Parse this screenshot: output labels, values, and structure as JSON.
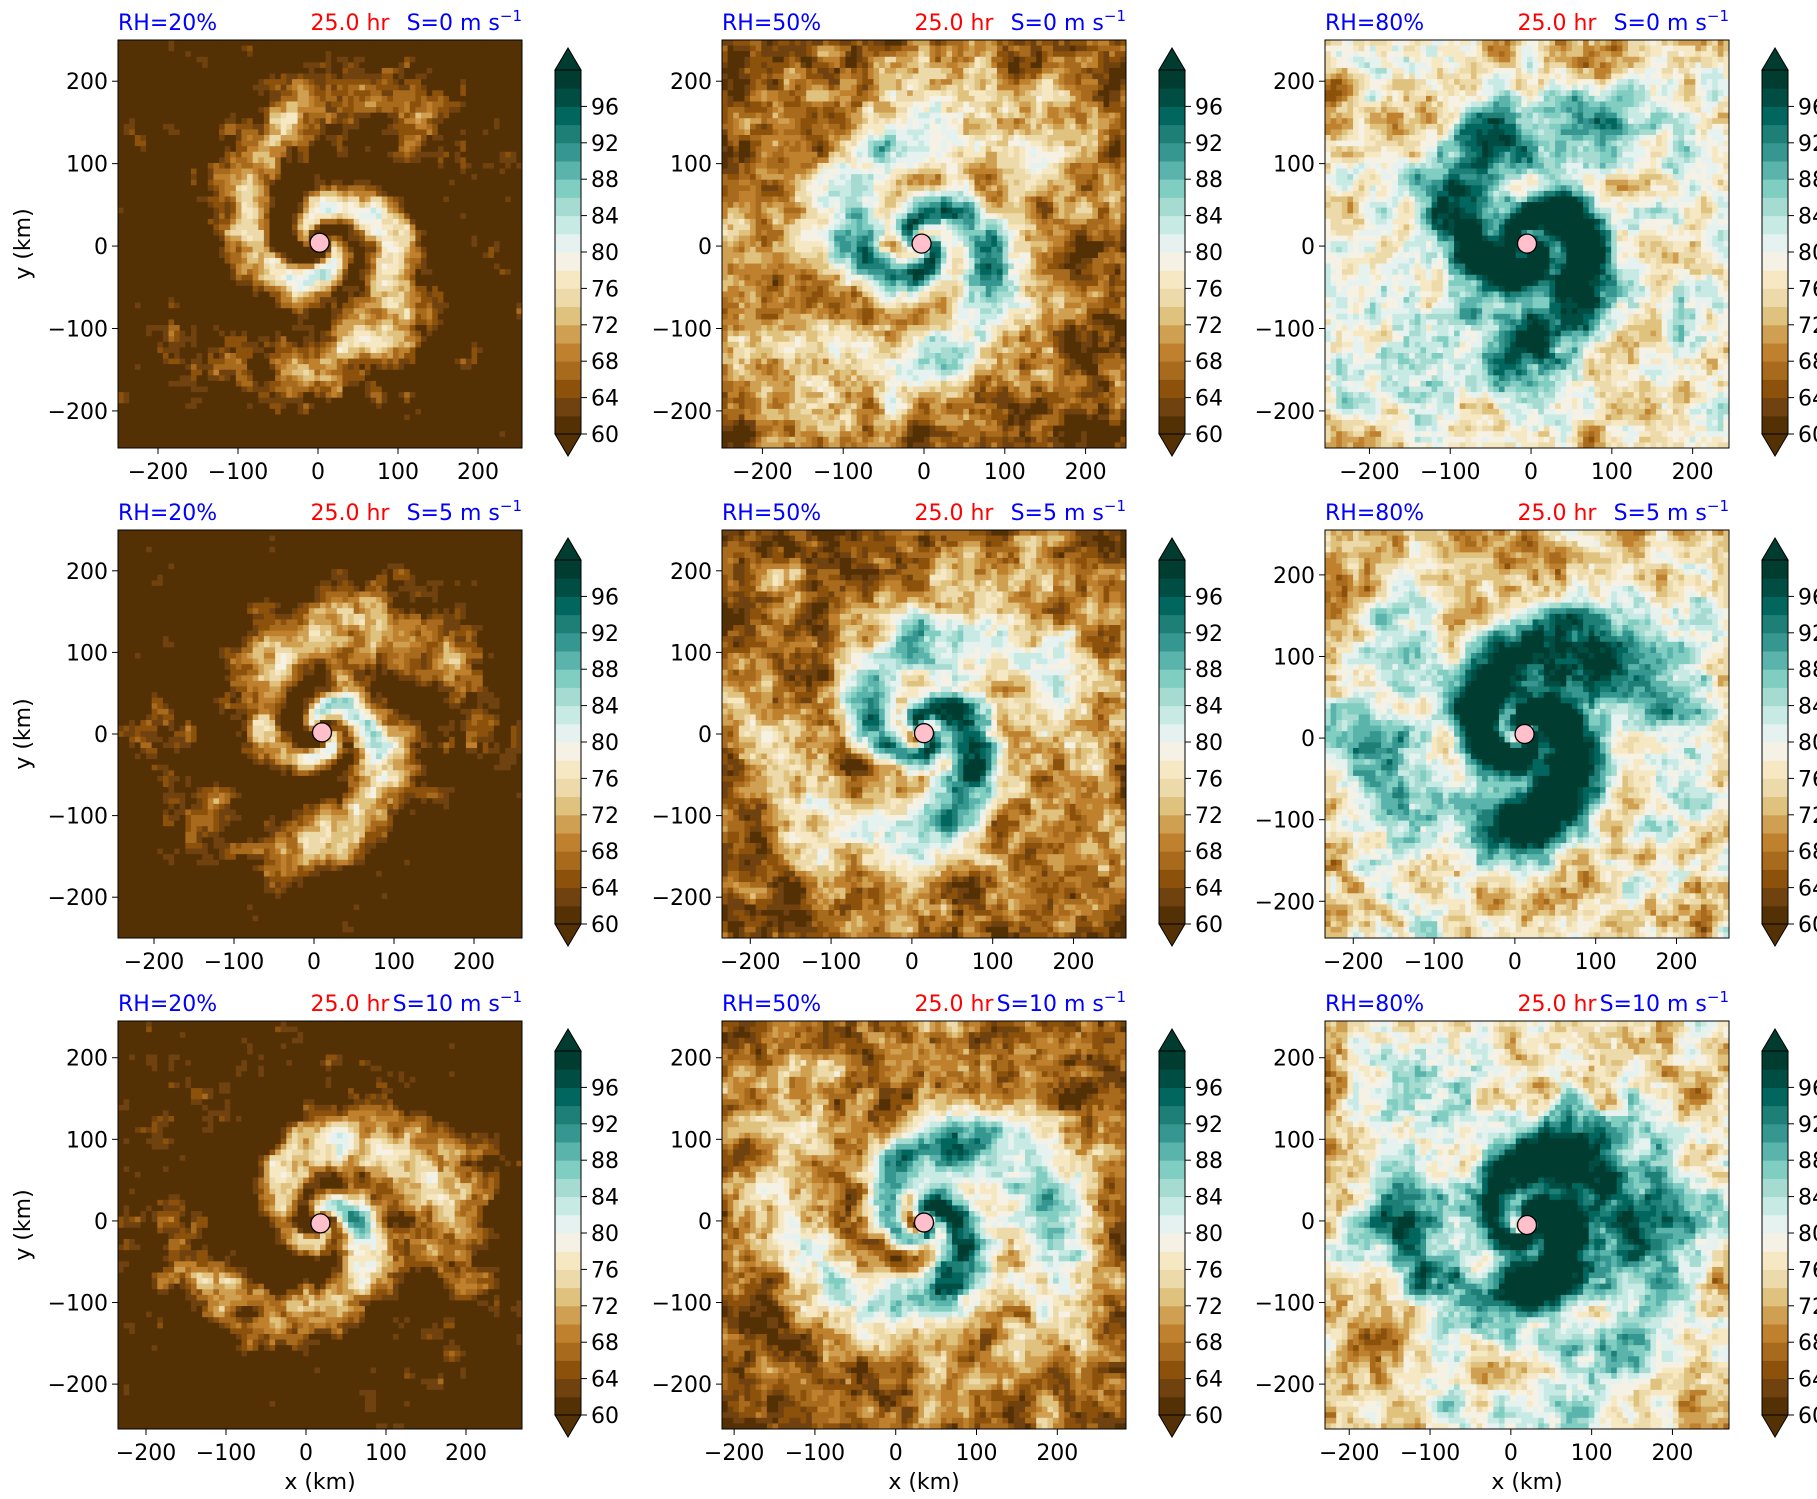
{
  "figure": {
    "colorbar_ticks": [
      "60",
      "64",
      "68",
      "72",
      "76",
      "80",
      "84",
      "88",
      "92",
      "96"
    ],
    "colorbar_levels": [
      60,
      62,
      64,
      66,
      68,
      70,
      72,
      74,
      76,
      78,
      80,
      82,
      84,
      86,
      88,
      90,
      92,
      94,
      96,
      98
    ],
    "colorbar_colors": [
      "#543005",
      "#6f4210",
      "#8c510a",
      "#a86a1c",
      "#bf812d",
      "#d0a052",
      "#dfc27d",
      "#eddaab",
      "#f6e8c3",
      "#f5f2e5",
      "#e6f2f0",
      "#c7eae5",
      "#a6dbd1",
      "#80cdc1",
      "#5ab4ac",
      "#35978f",
      "#1d7f76",
      "#01665e",
      "#004d43",
      "#003c30"
    ],
    "xlabel": "x (km)",
    "ylabel": "y (km)",
    "time_label": "25.0 hr",
    "title_color_left": "#0000ff",
    "title_color_center": "#ff0000",
    "title_color_right": "#0000ff",
    "marker_color": "#ffc0cb"
  },
  "chart_data": [
    {
      "type": "heatmap",
      "rh_label": "RH=20%",
      "time_label": "25.0 hr",
      "shear_label": "S=0 m s",
      "shear_exp": "−1",
      "xlim": [
        -250,
        255
      ],
      "ylim": [
        -245,
        250
      ],
      "xticks": [
        -200,
        -100,
        0,
        100,
        200
      ],
      "yticks": [
        -200,
        -100,
        0,
        100,
        200
      ],
      "xticklabels": [
        "−200",
        "−100",
        "0",
        "100",
        "200"
      ],
      "yticklabels": [
        "−200",
        "−100",
        "0",
        "100",
        "200"
      ],
      "center": [
        2,
        4
      ],
      "rh_env": 20,
      "shear": 0
    },
    {
      "type": "heatmap",
      "rh_label": "RH=50%",
      "time_label": "25.0 hr",
      "shear_label": "S=0 m s",
      "shear_exp": "−1",
      "xlim": [
        -250,
        250
      ],
      "ylim": [
        -245,
        250
      ],
      "xticks": [
        -200,
        -100,
        0,
        100,
        200
      ],
      "yticks": [
        -200,
        -100,
        0,
        100,
        200
      ],
      "xticklabels": [
        "−200",
        "−100",
        "0",
        "100",
        "200"
      ],
      "yticklabels": [
        "−200",
        "−100",
        "0",
        "100",
        "200"
      ],
      "center": [
        -3,
        3
      ],
      "rh_env": 50,
      "shear": 0
    },
    {
      "type": "heatmap",
      "rh_label": "RH=80%",
      "time_label": "25.0 hr",
      "shear_label": "S=0 m s",
      "shear_exp": "−1",
      "xlim": [
        -255,
        245
      ],
      "ylim": [
        -245,
        250
      ],
      "xticks": [
        -200,
        -100,
        0,
        100,
        200
      ],
      "yticks": [
        -200,
        -100,
        0,
        100,
        200
      ],
      "xticklabels": [
        "−200",
        "−100",
        "0",
        "100",
        "200"
      ],
      "yticklabels": [
        "−200",
        "−100",
        "0",
        "100",
        "200"
      ],
      "center": [
        -5,
        3
      ],
      "rh_env": 80,
      "shear": 0
    },
    {
      "type": "heatmap",
      "rh_label": "RH=20%",
      "time_label": "25.0 hr",
      "shear_label": "S=5 m s",
      "shear_exp": "−1",
      "xlim": [
        -245,
        260
      ],
      "ylim": [
        -250,
        250
      ],
      "xticks": [
        -200,
        -100,
        0,
        100,
        200
      ],
      "yticks": [
        -200,
        -100,
        0,
        100,
        200
      ],
      "xticklabels": [
        "−200",
        "−100",
        "0",
        "100",
        "200"
      ],
      "yticklabels": [
        "−200",
        "−100",
        "0",
        "100",
        "200"
      ],
      "center": [
        10,
        2
      ],
      "rh_env": 20,
      "shear": 5
    },
    {
      "type": "heatmap",
      "rh_label": "RH=50%",
      "time_label": "25.0 hr",
      "shear_label": "S=5 m s",
      "shear_exp": "−1",
      "xlim": [
        -235,
        265
      ],
      "ylim": [
        -250,
        250
      ],
      "xticks": [
        -200,
        -100,
        0,
        100,
        200
      ],
      "yticks": [
        -200,
        -100,
        0,
        100,
        200
      ],
      "xticklabels": [
        "−200",
        "−100",
        "0",
        "100",
        "200"
      ],
      "yticklabels": [
        "−200",
        "−100",
        "0",
        "100",
        "200"
      ],
      "center": [
        15,
        1
      ],
      "rh_env": 50,
      "shear": 5
    },
    {
      "type": "heatmap",
      "rh_label": "RH=80%",
      "time_label": "25.0 hr",
      "shear_label": "S=5 m s",
      "shear_exp": "−1",
      "xlim": [
        -235,
        265
      ],
      "ylim": [
        -245,
        255
      ],
      "xticks": [
        -200,
        -100,
        0,
        100,
        200
      ],
      "yticks": [
        -200,
        -100,
        0,
        100,
        200
      ],
      "xticklabels": [
        "−200",
        "−100",
        "0",
        "100",
        "200"
      ],
      "yticklabels": [
        "−200",
        "−100",
        "0",
        "100",
        "200"
      ],
      "center": [
        12,
        5
      ],
      "rh_env": 80,
      "shear": 5
    },
    {
      "type": "heatmap",
      "rh_label": "RH=20%",
      "time_label": "25.0 hr",
      "shear_label": "S=10 m s",
      "shear_exp": "−1",
      "xlim": [
        -235,
        270
      ],
      "ylim": [
        -255,
        245
      ],
      "xticks": [
        -200,
        -100,
        0,
        100,
        200
      ],
      "yticks": [
        -200,
        -100,
        0,
        100,
        200
      ],
      "xticklabels": [
        "−200",
        "−100",
        "0",
        "100",
        "200"
      ],
      "yticklabels": [
        "−200",
        "−100",
        "0",
        "100",
        "200"
      ],
      "center": [
        18,
        -3
      ],
      "rh_env": 20,
      "shear": 10
    },
    {
      "type": "heatmap",
      "rh_label": "RH=50%",
      "time_label": "25.0 hr",
      "shear_label": "S=10 m s",
      "shear_exp": "−1",
      "xlim": [
        -215,
        285
      ],
      "ylim": [
        -255,
        245
      ],
      "xticks": [
        -200,
        -100,
        0,
        100,
        200
      ],
      "yticks": [
        -200,
        -100,
        0,
        100,
        200
      ],
      "xticklabels": [
        "−200",
        "−100",
        "0",
        "100",
        "200"
      ],
      "yticklabels": [
        "−200",
        "−100",
        "0",
        "100",
        "200"
      ],
      "center": [
        35,
        -2
      ],
      "rh_env": 50,
      "shear": 10
    },
    {
      "type": "heatmap",
      "rh_label": "RH=80%",
      "time_label": "25.0 hr",
      "shear_label": "S=10 m s",
      "shear_exp": "−1",
      "xlim": [
        -230,
        270
      ],
      "ylim": [
        -255,
        245
      ],
      "xticks": [
        -200,
        -100,
        0,
        100,
        200
      ],
      "yticks": [
        -200,
        -100,
        0,
        100,
        200
      ],
      "xticklabels": [
        "−200",
        "−100",
        "0",
        "100",
        "200"
      ],
      "yticklabels": [
        "−200",
        "−100",
        "0",
        "100",
        "200"
      ],
      "center": [
        20,
        -5
      ],
      "rh_env": 80,
      "shear": 10
    }
  ]
}
